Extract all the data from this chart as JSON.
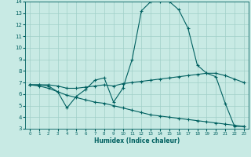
{
  "xlabel": "Humidex (Indice chaleur)",
  "ylabel": "",
  "xlim": [
    -0.5,
    23.5
  ],
  "ylim": [
    3,
    14
  ],
  "yticks": [
    3,
    4,
    5,
    6,
    7,
    8,
    9,
    10,
    11,
    12,
    13,
    14
  ],
  "xticks": [
    0,
    1,
    2,
    3,
    4,
    5,
    6,
    7,
    8,
    9,
    10,
    11,
    12,
    13,
    14,
    15,
    16,
    17,
    18,
    19,
    20,
    21,
    22,
    23
  ],
  "background_color": "#c8eae4",
  "grid_color": "#a0cfc8",
  "line_color": "#006060",
  "line1_x": [
    0,
    1,
    2,
    3,
    4,
    5,
    6,
    7,
    8,
    9,
    10,
    11,
    12,
    13,
    14,
    15,
    16,
    17,
    18,
    19,
    20,
    21,
    22,
    23
  ],
  "line1_y": [
    6.8,
    6.8,
    6.7,
    6.2,
    4.8,
    5.8,
    6.4,
    7.2,
    7.4,
    5.3,
    6.5,
    9.0,
    13.2,
    14.0,
    14.0,
    14.0,
    13.3,
    11.7,
    8.5,
    7.8,
    7.5,
    5.2,
    3.2,
    3.2
  ],
  "line2_x": [
    0,
    1,
    2,
    3,
    4,
    5,
    6,
    7,
    8,
    9,
    10,
    11,
    12,
    13,
    14,
    15,
    16,
    17,
    18,
    19,
    20,
    21,
    22,
    23
  ],
  "line2_y": [
    6.8,
    6.8,
    6.8,
    6.7,
    6.5,
    6.5,
    6.6,
    6.7,
    6.8,
    6.7,
    6.9,
    7.0,
    7.1,
    7.2,
    7.3,
    7.4,
    7.5,
    7.6,
    7.7,
    7.8,
    7.8,
    7.6,
    7.3,
    7.0
  ],
  "line3_x": [
    0,
    1,
    2,
    3,
    4,
    5,
    6,
    7,
    8,
    9,
    10,
    11,
    12,
    13,
    14,
    15,
    16,
    17,
    18,
    19,
    20,
    21,
    22,
    23
  ],
  "line3_y": [
    6.8,
    6.7,
    6.5,
    6.2,
    5.9,
    5.7,
    5.5,
    5.3,
    5.2,
    5.0,
    4.8,
    4.6,
    4.4,
    4.2,
    4.1,
    4.0,
    3.9,
    3.8,
    3.7,
    3.6,
    3.5,
    3.4,
    3.3,
    3.2
  ]
}
